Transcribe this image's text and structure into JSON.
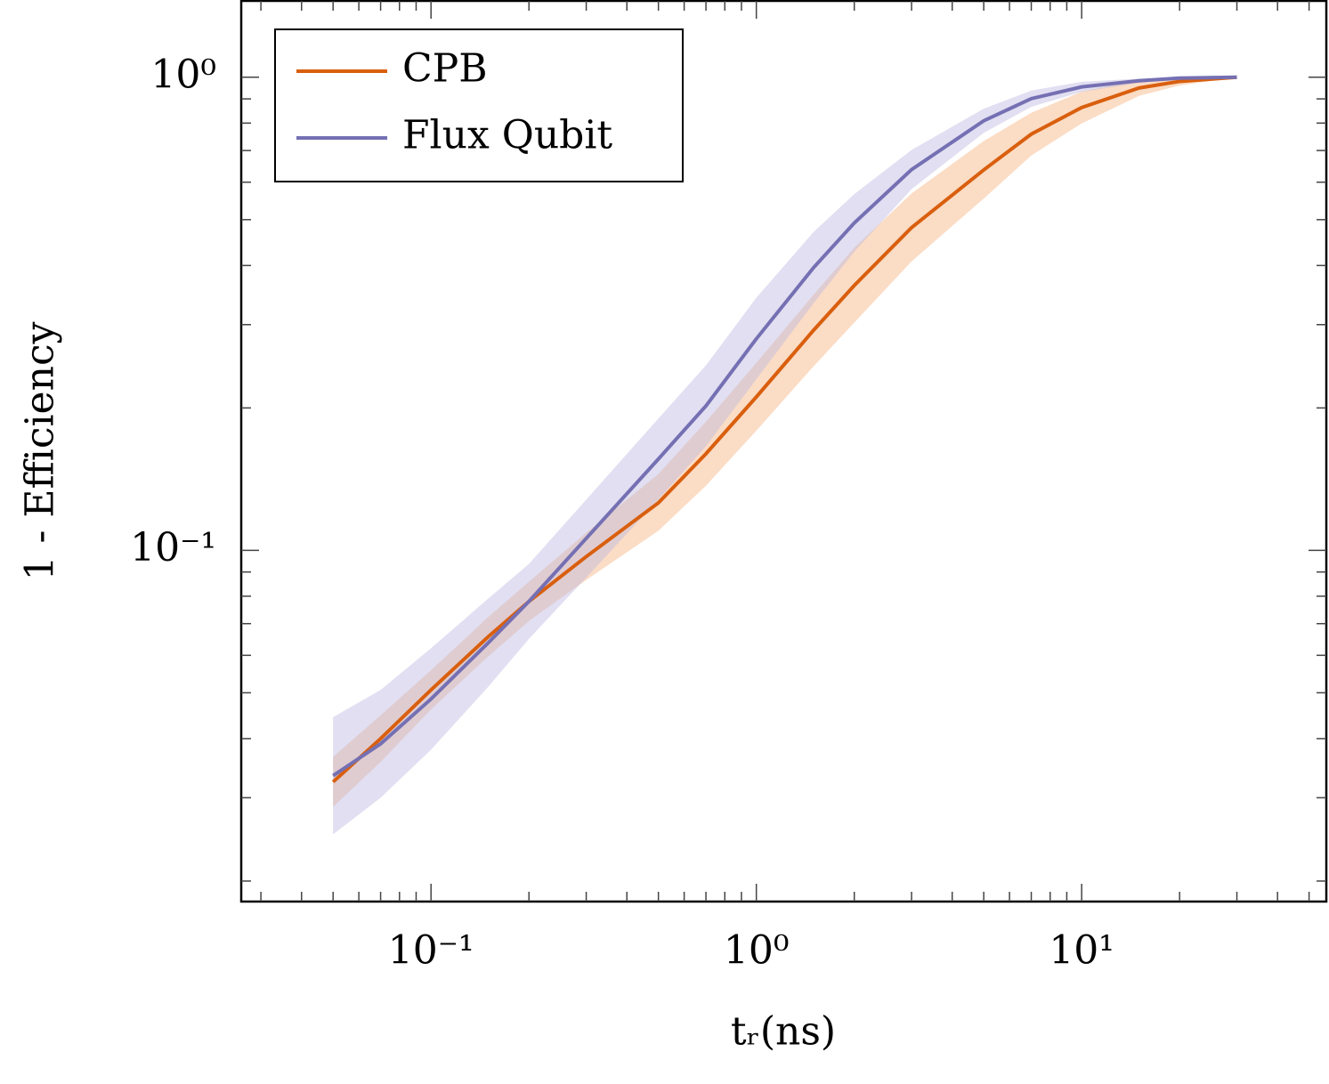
{
  "chart_data": {
    "type": "line",
    "x_label": "tᵣ(ns)",
    "y_label": "1 - Efficiency",
    "log_x": true,
    "log_y": true,
    "legend": "upper-left",
    "x": [
      0.05,
      0.07,
      0.1,
      0.15,
      0.2,
      0.3,
      0.5,
      0.7,
      1,
      1.5,
      2,
      3,
      5,
      7,
      10,
      15,
      20,
      30
    ],
    "series": [
      {
        "name": "CPB",
        "color": "#d95f0e",
        "band_color": "#f6b17f",
        "values": [
          0.0324,
          0.04,
          0.0507,
          0.0657,
          0.078,
          0.097,
          0.126,
          0.16,
          0.211,
          0.292,
          0.363,
          0.481,
          0.637,
          0.758,
          0.863,
          0.949,
          0.98,
          1.0
        ],
        "upper": [
          0.0366,
          0.0448,
          0.0558,
          0.0723,
          0.0858,
          0.109,
          0.145,
          0.187,
          0.249,
          0.347,
          0.436,
          0.568,
          0.733,
          0.841,
          0.932,
          0.987,
          1.0,
          1.0
        ],
        "lower": [
          0.0287,
          0.0357,
          0.0461,
          0.0597,
          0.0709,
          0.0866,
          0.11,
          0.137,
          0.179,
          0.245,
          0.303,
          0.408,
          0.554,
          0.683,
          0.799,
          0.913,
          0.961,
          1.0
        ]
      },
      {
        "name": "Flux Qubit",
        "color": "#7570b3",
        "band_color": "#bcb8e0",
        "values": [
          0.0334,
          0.039,
          0.0485,
          0.0638,
          0.078,
          0.106,
          0.156,
          0.202,
          0.28,
          0.396,
          0.492,
          0.638,
          0.809,
          0.901,
          0.954,
          0.983,
          0.996,
          1.0
        ],
        "upper": [
          0.0444,
          0.0507,
          0.0621,
          0.0791,
          0.0936,
          0.128,
          0.19,
          0.246,
          0.342,
          0.471,
          0.566,
          0.702,
          0.858,
          0.937,
          0.978,
          0.993,
          0.999,
          1.0
        ],
        "lower": [
          0.0251,
          0.03,
          0.0379,
          0.0515,
          0.065,
          0.0876,
          0.128,
          0.166,
          0.23,
          0.333,
          0.428,
          0.58,
          0.763,
          0.866,
          0.931,
          0.973,
          0.993,
          1.0
        ]
      }
    ],
    "xlim": [
      0.0261,
      56.5
    ],
    "ylim": [
      0.0181,
      1.45
    ],
    "xticks": [
      {
        "value": 0.1,
        "label": "10⁻¹"
      },
      {
        "value": 1,
        "label": "10⁰"
      },
      {
        "value": 10,
        "label": "10¹"
      }
    ],
    "yticks": [
      {
        "value": 0.1,
        "label": "10⁻¹"
      },
      {
        "value": 1,
        "label": "10⁰"
      }
    ],
    "xminorticks": [
      0.03,
      0.04,
      0.05,
      0.06,
      0.07,
      0.08,
      0.09,
      0.2,
      0.3,
      0.4,
      0.5,
      0.6,
      0.7,
      0.8,
      0.9,
      2,
      3,
      4,
      5,
      6,
      7,
      8,
      9,
      20,
      30,
      40,
      50
    ],
    "yminorticks": [
      0.02,
      0.03,
      0.04,
      0.05,
      0.06,
      0.07,
      0.08,
      0.09,
      0.2,
      0.3,
      0.4,
      0.5,
      0.6,
      0.7,
      0.8,
      0.9
    ]
  }
}
